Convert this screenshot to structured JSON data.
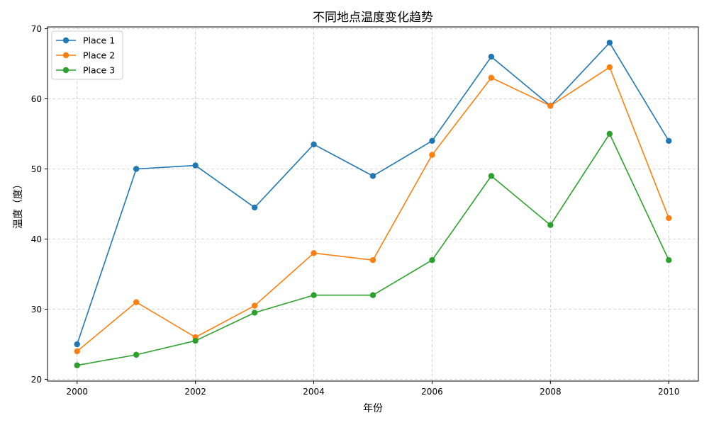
{
  "chart_data": {
    "type": "line",
    "title": "不同地点温度变化趋势",
    "xlabel": "年份",
    "ylabel": "温度（度）",
    "x": [
      2000,
      2001,
      2002,
      2003,
      2004,
      2005,
      2006,
      2007,
      2008,
      2009,
      2010
    ],
    "xlim": [
      1999.5,
      2010.5
    ],
    "ylim": [
      19.75,
      70.25
    ],
    "xticks": [
      2000,
      2002,
      2004,
      2006,
      2008,
      2010
    ],
    "yticks": [
      20,
      30,
      40,
      50,
      60,
      70
    ],
    "grid": true,
    "legend_position": "top-left",
    "series": [
      {
        "name": "Place 1",
        "color": "#1f77b4",
        "values": [
          25,
          50,
          50.5,
          44.5,
          53.5,
          49,
          54,
          66,
          59,
          68,
          54
        ]
      },
      {
        "name": "Place 2",
        "color": "#ff7f0e",
        "values": [
          24,
          31,
          26,
          30.5,
          38,
          37,
          52,
          63,
          59,
          64.5,
          43
        ]
      },
      {
        "name": "Place 3",
        "color": "#2ca02c",
        "values": [
          22,
          23.5,
          25.5,
          29.5,
          32,
          32,
          37,
          49,
          42,
          55,
          37
        ]
      }
    ]
  }
}
